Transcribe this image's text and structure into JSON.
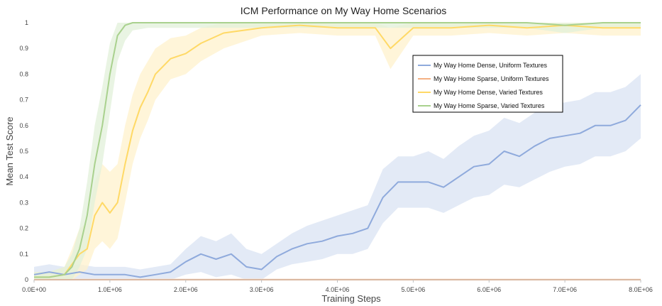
{
  "chart_data": {
    "type": "line",
    "title": "ICM Performance on My Way Home Scenarios",
    "xlabel": "Training Steps",
    "ylabel": "Mean Test Score",
    "xlim": [
      0,
      8000000
    ],
    "ylim": [
      0,
      1
    ],
    "xticks": [
      0,
      1000000,
      2000000,
      3000000,
      4000000,
      5000000,
      6000000,
      7000000,
      8000000
    ],
    "xtick_labels": [
      "0.0E+00",
      "1.0E+06",
      "2.0E+06",
      "3.0E+06",
      "4.0E+06",
      "5.0E+06",
      "6.0E+06",
      "7.0E+06",
      "8.0E+06"
    ],
    "yticks": [
      0,
      0.1,
      0.2,
      0.3,
      0.4,
      0.5,
      0.6,
      0.7,
      0.8,
      0.9,
      1
    ],
    "ytick_labels": [
      "0",
      "0.1",
      "0.2",
      "0.3",
      "0.4",
      "0.5",
      "0.6",
      "0.7",
      "0.8",
      "0.9",
      "1"
    ],
    "grid": false,
    "legend_position": "right, upper-middle",
    "series": [
      {
        "name": "My Way Home Dense, Uniform Textures",
        "color": "#8faadc",
        "band_color": "#dae3f3",
        "x": [
          0,
          200000,
          400000,
          600000,
          800000,
          1000000,
          1200000,
          1400000,
          1600000,
          1800000,
          2000000,
          2200000,
          2400000,
          2600000,
          2800000,
          3000000,
          3200000,
          3400000,
          3600000,
          3800000,
          4000000,
          4200000,
          4400000,
          4600000,
          4800000,
          5000000,
          5200000,
          5400000,
          5600000,
          5800000,
          6000000,
          6200000,
          6400000,
          6600000,
          6800000,
          7000000,
          7200000,
          7400000,
          7600000,
          7800000,
          8000000
        ],
        "y": [
          0.02,
          0.03,
          0.02,
          0.03,
          0.02,
          0.02,
          0.02,
          0.01,
          0.02,
          0.03,
          0.07,
          0.1,
          0.08,
          0.1,
          0.05,
          0.04,
          0.09,
          0.12,
          0.14,
          0.15,
          0.17,
          0.18,
          0.2,
          0.32,
          0.38,
          0.38,
          0.38,
          0.36,
          0.4,
          0.44,
          0.45,
          0.5,
          0.48,
          0.52,
          0.55,
          0.56,
          0.57,
          0.6,
          0.6,
          0.62,
          0.68
        ],
        "lower": [
          0,
          0,
          0,
          0,
          0,
          0,
          0,
          0,
          0,
          0,
          0.02,
          0.03,
          0.01,
          0.02,
          0,
          0,
          0.04,
          0.06,
          0.07,
          0.08,
          0.1,
          0.1,
          0.12,
          0.22,
          0.28,
          0.28,
          0.28,
          0.26,
          0.29,
          0.32,
          0.33,
          0.37,
          0.36,
          0.39,
          0.42,
          0.44,
          0.45,
          0.48,
          0.48,
          0.5,
          0.55
        ],
        "upper": [
          0.05,
          0.06,
          0.05,
          0.06,
          0.05,
          0.05,
          0.05,
          0.04,
          0.05,
          0.06,
          0.12,
          0.17,
          0.15,
          0.18,
          0.12,
          0.1,
          0.14,
          0.18,
          0.21,
          0.23,
          0.25,
          0.27,
          0.29,
          0.43,
          0.48,
          0.48,
          0.5,
          0.47,
          0.52,
          0.56,
          0.58,
          0.63,
          0.61,
          0.65,
          0.68,
          0.69,
          0.7,
          0.73,
          0.73,
          0.75,
          0.8
        ]
      },
      {
        "name": "My Way Home Sparse, Uniform Textures",
        "color": "#f4b183",
        "band_color": "#fbe5d6",
        "x": [
          0,
          1000000,
          2000000,
          3000000,
          4000000,
          5000000,
          6000000,
          7000000,
          8000000
        ],
        "y": [
          0,
          0,
          0,
          0,
          0,
          0,
          0,
          0,
          0
        ],
        "lower": [
          0,
          0,
          0,
          0,
          0,
          0,
          0,
          0,
          0
        ],
        "upper": [
          0.005,
          0.005,
          0.005,
          0.005,
          0.005,
          0.005,
          0.005,
          0.005,
          0.005
        ]
      },
      {
        "name": "My Way Home Dense, Varied Textures",
        "color": "#ffd966",
        "band_color": "#fff2cc",
        "x": [
          0,
          200000,
          400000,
          500000,
          600000,
          700000,
          800000,
          900000,
          1000000,
          1100000,
          1200000,
          1300000,
          1400000,
          1500000,
          1600000,
          1800000,
          2000000,
          2200000,
          2500000,
          3000000,
          3500000,
          4000000,
          4500000,
          4700000,
          5000000,
          5500000,
          6000000,
          6500000,
          7000000,
          7500000,
          8000000
        ],
        "y": [
          0.01,
          0.01,
          0.02,
          0.06,
          0.1,
          0.12,
          0.25,
          0.3,
          0.26,
          0.3,
          0.45,
          0.58,
          0.67,
          0.73,
          0.8,
          0.86,
          0.88,
          0.92,
          0.96,
          0.98,
          0.99,
          0.98,
          0.98,
          0.9,
          0.98,
          0.98,
          0.99,
          0.98,
          0.99,
          0.98,
          0.98
        ],
        "lower": [
          0,
          0,
          0,
          0,
          0.02,
          0.04,
          0.12,
          0.15,
          0.12,
          0.16,
          0.3,
          0.45,
          0.55,
          0.62,
          0.7,
          0.78,
          0.8,
          0.85,
          0.9,
          0.95,
          0.96,
          0.95,
          0.95,
          0.82,
          0.95,
          0.95,
          0.96,
          0.95,
          0.96,
          0.95,
          0.95
        ],
        "upper": [
          0.03,
          0.03,
          0.05,
          0.12,
          0.2,
          0.22,
          0.38,
          0.45,
          0.42,
          0.45,
          0.6,
          0.72,
          0.8,
          0.85,
          0.9,
          0.94,
          0.95,
          0.98,
          1,
          1,
          1,
          1,
          1,
          0.98,
          1,
          1,
          1,
          1,
          1,
          1,
          1
        ]
      },
      {
        "name": "My Way Home Sparse, Varied Textures",
        "color": "#a9d18e",
        "band_color": "#e2f0d9",
        "x": [
          0,
          200000,
          400000,
          500000,
          600000,
          700000,
          800000,
          900000,
          1000000,
          1100000,
          1200000,
          1300000,
          1500000,
          1700000,
          2000000,
          2500000,
          3000000,
          3500000,
          4000000,
          4500000,
          5000000,
          5500000,
          6000000,
          6500000,
          7000000,
          7500000,
          8000000
        ],
        "y": [
          0.01,
          0.01,
          0.02,
          0.05,
          0.12,
          0.25,
          0.45,
          0.6,
          0.8,
          0.95,
          0.99,
          1,
          1,
          1,
          1,
          1,
          1,
          1,
          1,
          1,
          1,
          1,
          1,
          1,
          0.99,
          1,
          1
        ],
        "lower": [
          0,
          0,
          0,
          0,
          0.05,
          0.12,
          0.3,
          0.45,
          0.65,
          0.85,
          0.93,
          0.97,
          0.98,
          0.98,
          0.98,
          0.98,
          0.98,
          0.98,
          0.98,
          0.98,
          0.98,
          0.98,
          0.98,
          0.98,
          0.96,
          0.98,
          0.98
        ],
        "upper": [
          0.03,
          0.03,
          0.05,
          0.1,
          0.2,
          0.38,
          0.6,
          0.75,
          0.92,
          1,
          1,
          1,
          1,
          1,
          1,
          1,
          1,
          1,
          1,
          1,
          1,
          1,
          1,
          1,
          1,
          1,
          1
        ]
      }
    ]
  }
}
